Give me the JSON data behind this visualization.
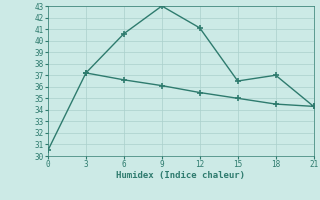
{
  "line1_x": [
    0,
    3,
    6,
    9,
    12,
    15,
    18,
    21
  ],
  "line1_y": [
    30.5,
    37.2,
    40.6,
    43.0,
    41.1,
    36.5,
    37.0,
    34.3
  ],
  "line2_x": [
    3,
    6,
    9,
    12,
    15,
    18,
    21
  ],
  "line2_y": [
    37.2,
    36.6,
    36.1,
    35.5,
    35.0,
    34.5,
    34.3
  ],
  "line_color": "#2e7b6e",
  "bg_color": "#cceae6",
  "grid_color": "#aad0cc",
  "xlabel": "Humidex (Indice chaleur)",
  "xlim": [
    0,
    21
  ],
  "ylim": [
    30,
    43
  ],
  "xticks": [
    0,
    3,
    6,
    9,
    12,
    15,
    18,
    21
  ],
  "yticks": [
    30,
    31,
    32,
    33,
    34,
    35,
    36,
    37,
    38,
    39,
    40,
    41,
    42,
    43
  ],
  "marker": "+",
  "markersize": 4,
  "linewidth": 1.0,
  "tick_fontsize": 5.5,
  "xlabel_fontsize": 6.5
}
